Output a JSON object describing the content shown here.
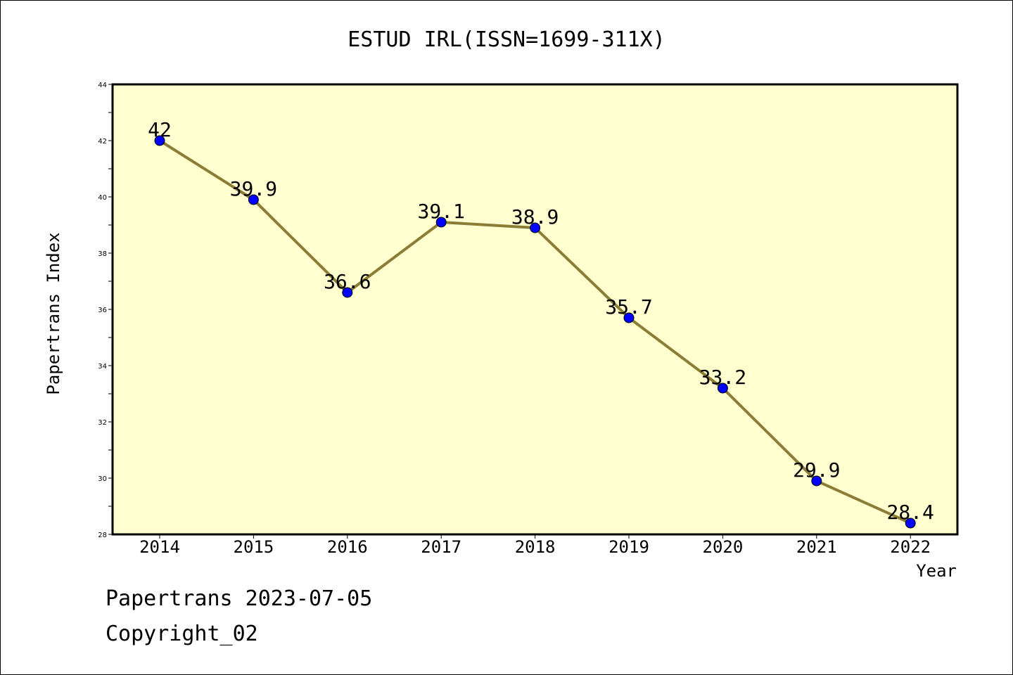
{
  "footer": {
    "line1": "Papertrans 2023-07-05",
    "line2": "Copyright_02"
  },
  "chart_data": {
    "type": "line",
    "title": "ESTUD IRL(ISSN=1699-311X)",
    "xlabel": "Year",
    "ylabel": "Papertrans Index",
    "categories": [
      "2014",
      "2015",
      "2016",
      "2017",
      "2018",
      "2019",
      "2020",
      "2021",
      "2022"
    ],
    "series": [
      {
        "values": [
          42,
          39.9,
          36.6,
          39.1,
          38.9,
          35.7,
          33.2,
          29.9,
          28.4
        ],
        "labels": [
          "42",
          "39.9",
          "36.6",
          "39.1",
          "38.9",
          "35.7",
          "33.2",
          "29.9",
          "28.4"
        ]
      }
    ],
    "ylim": [
      28,
      44
    ],
    "yticks": [
      28,
      30,
      32,
      34,
      36,
      38,
      40,
      42,
      44
    ],
    "colors": {
      "plot_background": "#ffffd0",
      "line": "#8b7d35",
      "marker": "#0000ff"
    },
    "grid": false,
    "legend": "none"
  }
}
